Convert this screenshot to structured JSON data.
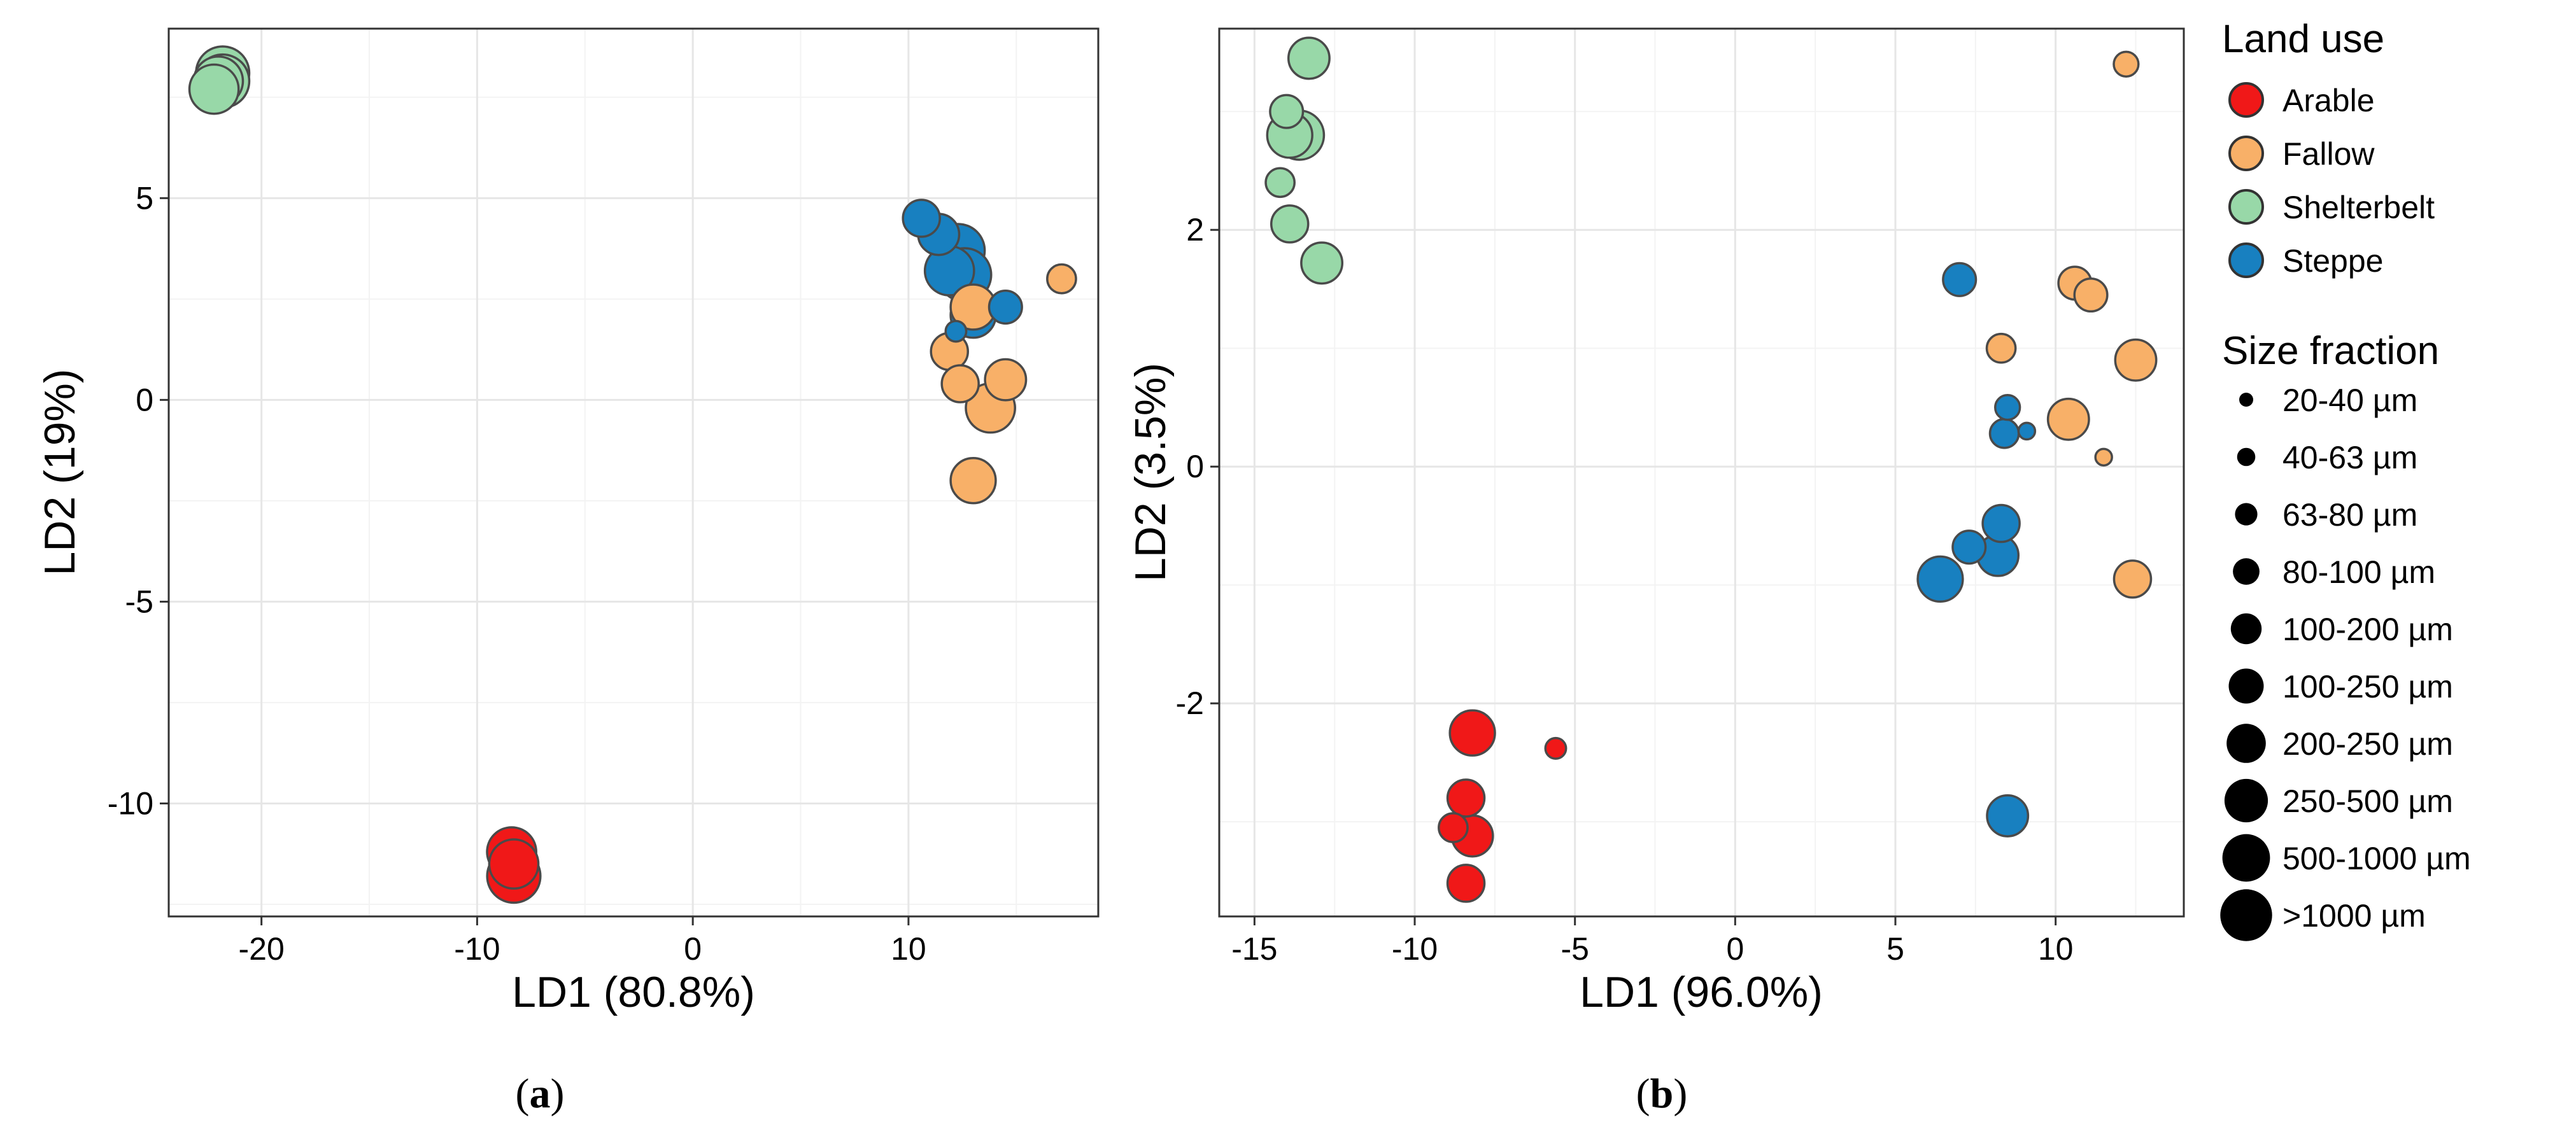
{
  "figure": {
    "caption_a": {
      "open": "(",
      "letter": "a",
      "close": ")"
    },
    "caption_b": {
      "open": "(",
      "letter": "b",
      "close": ")"
    }
  },
  "legend": {
    "land_use_title": "Land use",
    "land_use_items": [
      {
        "label": "Arable",
        "color": "#f01818"
      },
      {
        "label": "Fallow",
        "color": "#f8b068"
      },
      {
        "label": "Shelterbelt",
        "color": "#98d8a8"
      },
      {
        "label": "Steppe",
        "color": "#1880c0"
      }
    ],
    "size_title": "Size fraction",
    "size_items": [
      "20-40 µm",
      "40-63 µm",
      "63-80 µm",
      "80-100 µm",
      "100-200 µm",
      "100-250 µm",
      "200-250 µm",
      "250-500 µm",
      "500-1000 µm",
      ">1000 µm"
    ]
  },
  "chart_data": [
    {
      "type": "scatter",
      "panel": "a",
      "xlabel": "LD1 (80.8%)",
      "ylabel": "LD2 (19%)",
      "xlim": [
        -24.3,
        18.8
      ],
      "ylim": [
        -12.8,
        9.2
      ],
      "xticks": [
        {
          "value": -20,
          "label": "-20"
        },
        {
          "value": -10,
          "label": "-10"
        },
        {
          "value": 0,
          "label": "0"
        },
        {
          "value": 10,
          "label": "10"
        }
      ],
      "yticks": [
        {
          "value": -10,
          "label": "-10"
        },
        {
          "value": -5,
          "label": "-5"
        },
        {
          "value": 0,
          "label": "0"
        },
        {
          "value": 5,
          "label": "5"
        }
      ],
      "points": [
        {
          "group": "Shelterbelt",
          "size": 10,
          "x": -21.8,
          "y": 8.1
        },
        {
          "group": "Shelterbelt",
          "size": 9,
          "x": -22.0,
          "y": 7.9
        },
        {
          "group": "Shelterbelt",
          "size": 9,
          "x": -22.2,
          "y": 7.7
        },
        {
          "group": "Shelterbelt",
          "size": 10,
          "x": -21.8,
          "y": 7.9
        },
        {
          "group": "Arable",
          "size": 9,
          "x": -8.4,
          "y": -11.2
        },
        {
          "group": "Arable",
          "size": 9,
          "x": -8.3,
          "y": -11.5
        },
        {
          "group": "Arable",
          "size": 10,
          "x": -8.3,
          "y": -11.8
        },
        {
          "group": "Steppe",
          "size": 6,
          "x": 10.6,
          "y": 4.5
        },
        {
          "group": "Steppe",
          "size": 7,
          "x": 11.4,
          "y": 4.1
        },
        {
          "group": "Steppe",
          "size": 9,
          "x": 11.9,
          "y": 3.2
        },
        {
          "group": "Steppe",
          "size": 10,
          "x": 12.3,
          "y": 3.7
        },
        {
          "group": "Steppe",
          "size": 10,
          "x": 12.6,
          "y": 3.1
        },
        {
          "group": "Steppe",
          "size": 8,
          "x": 13.0,
          "y": 2.1
        },
        {
          "group": "Steppe",
          "size": 5,
          "x": 14.5,
          "y": 2.3
        },
        {
          "group": "Steppe",
          "size": 2,
          "x": 12.2,
          "y": 1.7
        },
        {
          "group": "Fallow",
          "size": 4,
          "x": 17.1,
          "y": 3.0
        },
        {
          "group": "Fallow",
          "size": 8,
          "x": 13.0,
          "y": 2.3
        },
        {
          "group": "Fallow",
          "size": 6,
          "x": 11.9,
          "y": 1.2
        },
        {
          "group": "Fallow",
          "size": 6,
          "x": 12.4,
          "y": 0.4
        },
        {
          "group": "Fallow",
          "size": 7,
          "x": 14.5,
          "y": 0.5
        },
        {
          "group": "Fallow",
          "size": 9,
          "x": 13.8,
          "y": -0.2
        },
        {
          "group": "Fallow",
          "size": 8,
          "x": 13.0,
          "y": -2.0
        }
      ]
    },
    {
      "type": "scatter",
      "panel": "b",
      "xlabel": "LD1 (96.0%)",
      "ylabel": "LD2 (3.5%)",
      "xlim": [
        -16.1,
        14.0
      ],
      "ylim": [
        -3.8,
        3.7
      ],
      "xticks": [
        {
          "value": -15,
          "label": "-15"
        },
        {
          "value": -10,
          "label": "-10"
        },
        {
          "value": -5,
          "label": "-5"
        },
        {
          "value": 0,
          "label": "0"
        },
        {
          "value": 5,
          "label": "5"
        },
        {
          "value": 10,
          "label": "10"
        }
      ],
      "yticks": [
        {
          "value": -2,
          "label": "-2"
        },
        {
          "value": 0,
          "label": "0"
        },
        {
          "value": 2,
          "label": "2"
        }
      ],
      "points": [
        {
          "group": "Shelterbelt",
          "size": 7,
          "x": -13.3,
          "y": 3.45
        },
        {
          "group": "Shelterbelt",
          "size": 5,
          "x": -14.0,
          "y": 3.0
        },
        {
          "group": "Shelterbelt",
          "size": 8,
          "x": -13.9,
          "y": 2.8
        },
        {
          "group": "Shelterbelt",
          "size": 9,
          "x": -13.6,
          "y": 2.8
        },
        {
          "group": "Shelterbelt",
          "size": 4,
          "x": -14.2,
          "y": 2.4
        },
        {
          "group": "Shelterbelt",
          "size": 6,
          "x": -13.9,
          "y": 2.05
        },
        {
          "group": "Shelterbelt",
          "size": 7,
          "x": -12.9,
          "y": 1.72
        },
        {
          "group": "Fallow",
          "size": 3,
          "x": 12.2,
          "y": 3.4
        },
        {
          "group": "Fallow",
          "size": 5,
          "x": 10.6,
          "y": 1.55
        },
        {
          "group": "Fallow",
          "size": 5,
          "x": 11.1,
          "y": 1.45
        },
        {
          "group": "Fallow",
          "size": 4,
          "x": 8.3,
          "y": 1.0
        },
        {
          "group": "Fallow",
          "size": 7,
          "x": 12.5,
          "y": 0.9
        },
        {
          "group": "Fallow",
          "size": 7,
          "x": 10.4,
          "y": 0.4
        },
        {
          "group": "Fallow",
          "size": 1,
          "x": 11.5,
          "y": 0.08
        },
        {
          "group": "Fallow",
          "size": 6,
          "x": 12.4,
          "y": -0.95
        },
        {
          "group": "Steppe",
          "size": 5,
          "x": 7.0,
          "y": 1.58
        },
        {
          "group": "Steppe",
          "size": 3,
          "x": 8.5,
          "y": 0.5
        },
        {
          "group": "Steppe",
          "size": 4,
          "x": 8.4,
          "y": 0.28
        },
        {
          "group": "Steppe",
          "size": 1,
          "x": 9.1,
          "y": 0.3
        },
        {
          "group": "Steppe",
          "size": 6,
          "x": 8.3,
          "y": -0.48
        },
        {
          "group": "Steppe",
          "size": 5,
          "x": 7.3,
          "y": -0.68
        },
        {
          "group": "Steppe",
          "size": 7,
          "x": 8.2,
          "y": -0.75
        },
        {
          "group": "Steppe",
          "size": 8,
          "x": 6.4,
          "y": -0.95
        },
        {
          "group": "Steppe",
          "size": 7,
          "x": 8.5,
          "y": -2.95
        },
        {
          "group": "Arable",
          "size": 8,
          "x": -8.2,
          "y": -2.25
        },
        {
          "group": "Arable",
          "size": 2,
          "x": -5.6,
          "y": -2.38
        },
        {
          "group": "Arable",
          "size": 6,
          "x": -8.4,
          "y": -2.8
        },
        {
          "group": "Arable",
          "size": 4,
          "x": -8.8,
          "y": -3.05
        },
        {
          "group": "Arable",
          "size": 7,
          "x": -8.2,
          "y": -3.12
        },
        {
          "group": "Arable",
          "size": 6,
          "x": -8.4,
          "y": -3.52
        }
      ]
    }
  ]
}
